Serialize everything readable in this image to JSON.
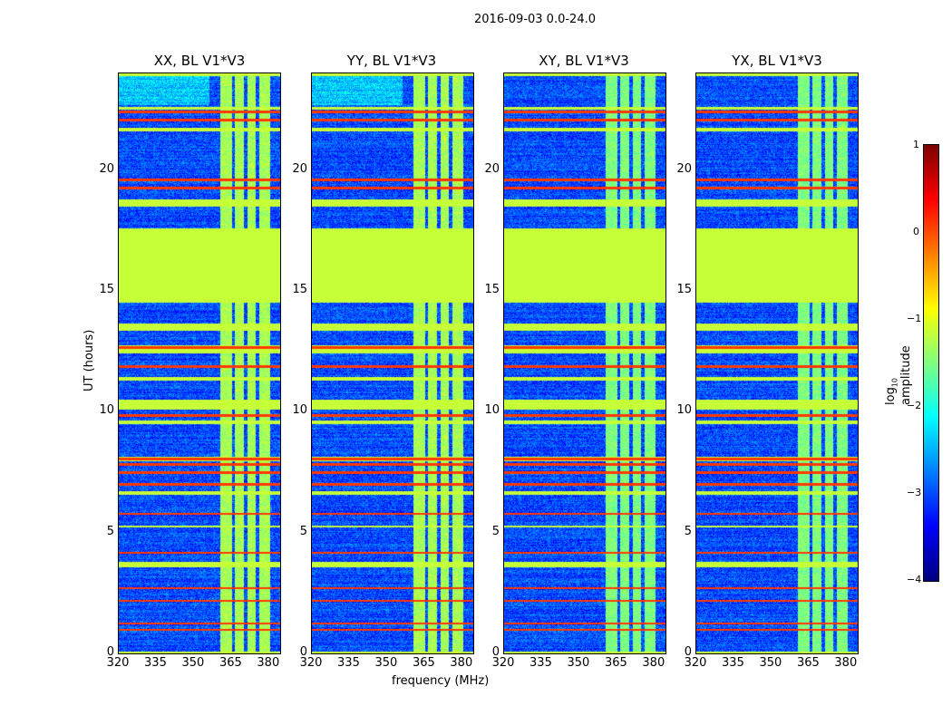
{
  "chart_data": {
    "type": "heatmap",
    "title": "2016-09-03 0.0-24.0",
    "xlabel": "frequency (MHz)",
    "ylabel": "UT (hours)",
    "xlim": [
      320,
      384.4
    ],
    "ylim": [
      0,
      24
    ],
    "xticks": [
      "320",
      "335",
      "350",
      "365",
      "380"
    ],
    "xtick_values": [
      320,
      335,
      350,
      365,
      380
    ],
    "yticks": [
      "0",
      "5",
      "10",
      "15",
      "20"
    ],
    "ytick_values": [
      0,
      5,
      10,
      15,
      20
    ],
    "panels": [
      {
        "title": "XX, BL V1*V3"
      },
      {
        "title": "YY, BL V1*V3"
      },
      {
        "title": "XY, BL V1*V3"
      },
      {
        "title": "YX, BL V1*V3"
      }
    ],
    "colorbar": {
      "label_main": "log",
      "label_sub": "10",
      "label_rest": " amplitude",
      "range": [
        -4,
        1
      ],
      "ticks": [
        "1",
        "0",
        "−1",
        "−2",
        "−3",
        "−4"
      ],
      "tick_values": [
        1,
        0,
        -1,
        -2,
        -3,
        -4
      ],
      "colormap": "jet"
    },
    "background_level": -3.0,
    "flagged_level": -1.15,
    "flagged_time_ranges_hours": [
      [
        0,
        0.06
      ],
      [
        3.55,
        3.78
      ],
      [
        5.2,
        5.3
      ],
      [
        6.55,
        6.7
      ],
      [
        7.95,
        8.15
      ],
      [
        9.5,
        9.65
      ],
      [
        10.1,
        10.5
      ],
      [
        11.3,
        11.42
      ],
      [
        12.4,
        12.75
      ],
      [
        13.35,
        13.65
      ],
      [
        14.5,
        17.6
      ],
      [
        18.5,
        18.78
      ],
      [
        21.6,
        21.75
      ],
      [
        22.5,
        22.62
      ],
      [
        23.9,
        24
      ]
    ],
    "rfi_time_lines_hours": [
      0.97,
      1.24,
      2.17,
      2.7,
      4.16,
      5.77,
      7.0,
      7.49,
      7.83,
      8.05,
      9.85,
      11.87,
      12.66,
      19.25,
      19.59,
      22.06,
      22.4
    ],
    "bright_freq_bands_mhz": [
      [
        360.7,
        365.1
      ],
      [
        366.2,
        369.8
      ],
      [
        371.3,
        374.6
      ],
      [
        376.0,
        380.4
      ]
    ],
    "bright_band_level": -1.3
  }
}
